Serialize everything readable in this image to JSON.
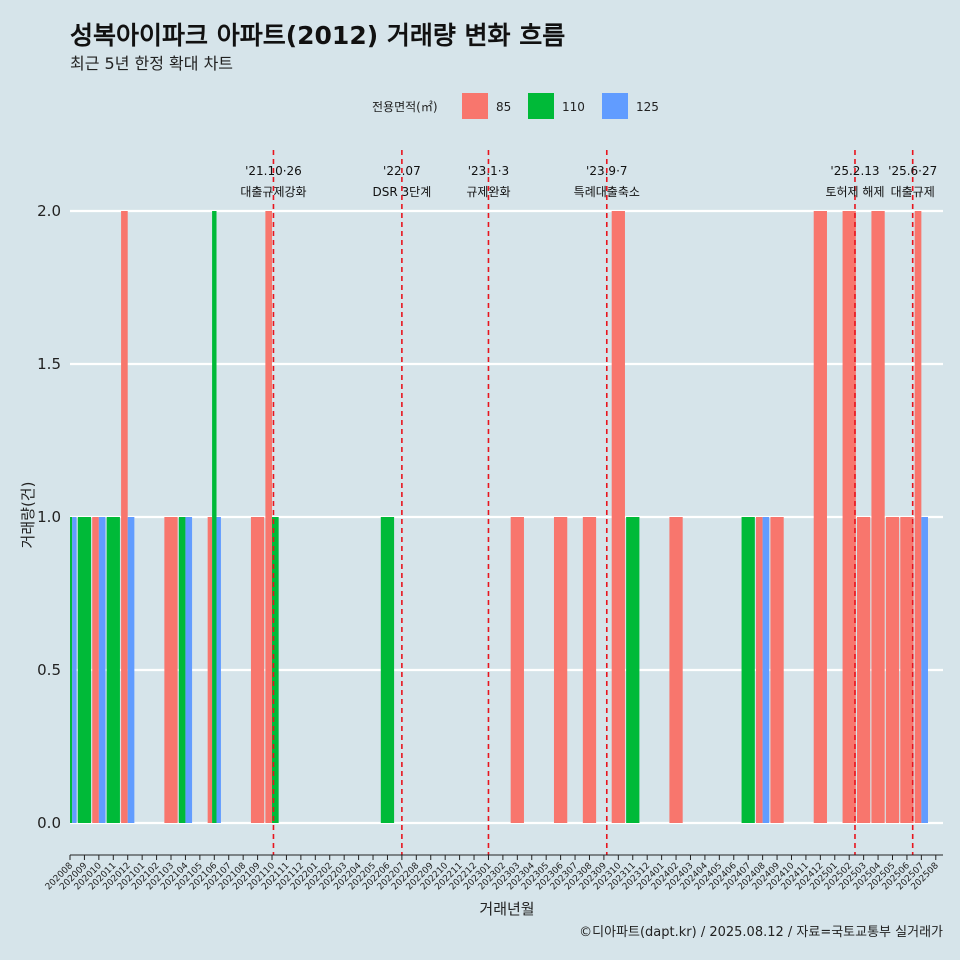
{
  "chart_data": {
    "type": "bar",
    "title": "성복아이파크 아파트(2012) 거래량 변화 흐름",
    "subtitle": "최근 5년 한정 확대 차트",
    "xlabel": "거래년월",
    "ylabel": "거래량(건)",
    "caption": "©디아파트(dapt.kr) / 2025.08.12 / 자료=국토교통부 실거래가",
    "ylim": [
      0,
      2.2
    ],
    "yticks": [
      0,
      0.5,
      1,
      1.5,
      2
    ],
    "ytick_labels": [
      "0.0",
      "0.5",
      "1.0",
      "1.5",
      "2.0"
    ],
    "legend": {
      "title": "전용면적(㎡)",
      "placement": "top",
      "entries": [
        {
          "label": "85",
          "color": "#f8766d"
        },
        {
          "label": "110",
          "color": "#00ba38"
        },
        {
          "label": "125",
          "color": "#619cff"
        }
      ]
    },
    "categories": [
      "202008",
      "202009",
      "202010",
      "202011",
      "202012",
      "202101",
      "202102",
      "202103",
      "202104",
      "202105",
      "202106",
      "202107",
      "202108",
      "202109",
      "202110",
      "202111",
      "202112",
      "202201",
      "202202",
      "202203",
      "202204",
      "202205",
      "202206",
      "202207",
      "202208",
      "202209",
      "202210",
      "202211",
      "202212",
      "202301",
      "202302",
      "202303",
      "202304",
      "202305",
      "202306",
      "202307",
      "202308",
      "202309",
      "202310",
      "202311",
      "202312",
      "202401",
      "202402",
      "202403",
      "202404",
      "202405",
      "202406",
      "202407",
      "202408",
      "202409",
      "202410",
      "202411",
      "202412",
      "202501",
      "202502",
      "202503",
      "202504",
      "202505",
      "202506",
      "202507",
      "202508"
    ],
    "bars": [
      {
        "month": "202008",
        "parts": [
          {
            "size": "85",
            "value": 0
          },
          {
            "size": "110",
            "value": 1
          },
          {
            "size": "125",
            "value": 1
          }
        ]
      },
      {
        "month": "202009",
        "parts": [
          {
            "size": "110",
            "value": 1
          }
        ]
      },
      {
        "month": "202010",
        "parts": [
          {
            "size": "85",
            "value": 1
          },
          {
            "size": "125",
            "value": 1
          }
        ]
      },
      {
        "month": "202011",
        "parts": [
          {
            "size": "110",
            "value": 1
          }
        ]
      },
      {
        "month": "202012",
        "parts": [
          {
            "size": "85",
            "value": 2
          },
          {
            "size": "125",
            "value": 1
          }
        ]
      },
      {
        "month": "202103",
        "parts": [
          {
            "size": "85",
            "value": 1
          }
        ]
      },
      {
        "month": "202104",
        "parts": [
          {
            "size": "110",
            "value": 1
          },
          {
            "size": "125",
            "value": 1
          }
        ]
      },
      {
        "month": "202106",
        "parts": [
          {
            "size": "85",
            "value": 1
          },
          {
            "size": "110",
            "value": 2
          },
          {
            "size": "125",
            "value": 1
          }
        ]
      },
      {
        "month": "202109",
        "parts": [
          {
            "size": "85",
            "value": 1
          }
        ]
      },
      {
        "month": "202110",
        "parts": [
          {
            "size": "85",
            "value": 2
          },
          {
            "size": "110",
            "value": 1
          }
        ]
      },
      {
        "month": "202206",
        "parts": [
          {
            "size": "110",
            "value": 1
          }
        ]
      },
      {
        "month": "202303",
        "parts": [
          {
            "size": "85",
            "value": 1
          }
        ]
      },
      {
        "month": "202306",
        "parts": [
          {
            "size": "85",
            "value": 1
          }
        ]
      },
      {
        "month": "202308",
        "parts": [
          {
            "size": "85",
            "value": 1
          }
        ]
      },
      {
        "month": "202310",
        "parts": [
          {
            "size": "85",
            "value": 2
          }
        ]
      },
      {
        "month": "202311",
        "parts": [
          {
            "size": "110",
            "value": 1
          }
        ]
      },
      {
        "month": "202402",
        "parts": [
          {
            "size": "85",
            "value": 1
          }
        ]
      },
      {
        "month": "202407",
        "parts": [
          {
            "size": "110",
            "value": 1
          }
        ]
      },
      {
        "month": "202408",
        "parts": [
          {
            "size": "85",
            "value": 1
          },
          {
            "size": "125",
            "value": 1
          }
        ]
      },
      {
        "month": "202409",
        "parts": [
          {
            "size": "85",
            "value": 1
          }
        ]
      },
      {
        "month": "202412",
        "parts": [
          {
            "size": "85",
            "value": 2
          }
        ]
      },
      {
        "month": "202502",
        "parts": [
          {
            "size": "85",
            "value": 2
          }
        ]
      },
      {
        "month": "202503",
        "parts": [
          {
            "size": "85",
            "value": 1
          }
        ]
      },
      {
        "month": "202504",
        "parts": [
          {
            "size": "85",
            "value": 2
          }
        ]
      },
      {
        "month": "202505",
        "parts": [
          {
            "size": "85",
            "value": 1
          }
        ]
      },
      {
        "month": "202506",
        "parts": [
          {
            "size": "85",
            "value": 1
          }
        ]
      },
      {
        "month": "202507",
        "parts": [
          {
            "size": "85",
            "value": 2
          },
          {
            "size": "125",
            "value": 1
          }
        ]
      }
    ],
    "events": [
      {
        "month": "202110",
        "offset": 0.1,
        "date_label": "'21.10·26",
        "desc_label": "대출규제강화"
      },
      {
        "month": "202207",
        "offset": 0,
        "date_label": "'22.07",
        "desc_label": "DSR 3단계"
      },
      {
        "month": "202301",
        "offset": 0,
        "date_label": "'23.1·3",
        "desc_label": "규제완화"
      },
      {
        "month": "202309",
        "offset": 0.2,
        "date_label": "'23.9·7",
        "desc_label": "특례대출축소"
      },
      {
        "month": "202502",
        "offset": 0.4,
        "date_label": "'25.2.13",
        "desc_label": "토허제 해제"
      },
      {
        "month": "202506",
        "offset": 0.4,
        "date_label": "'25.6·27",
        "desc_label": "대출규제"
      }
    ]
  }
}
